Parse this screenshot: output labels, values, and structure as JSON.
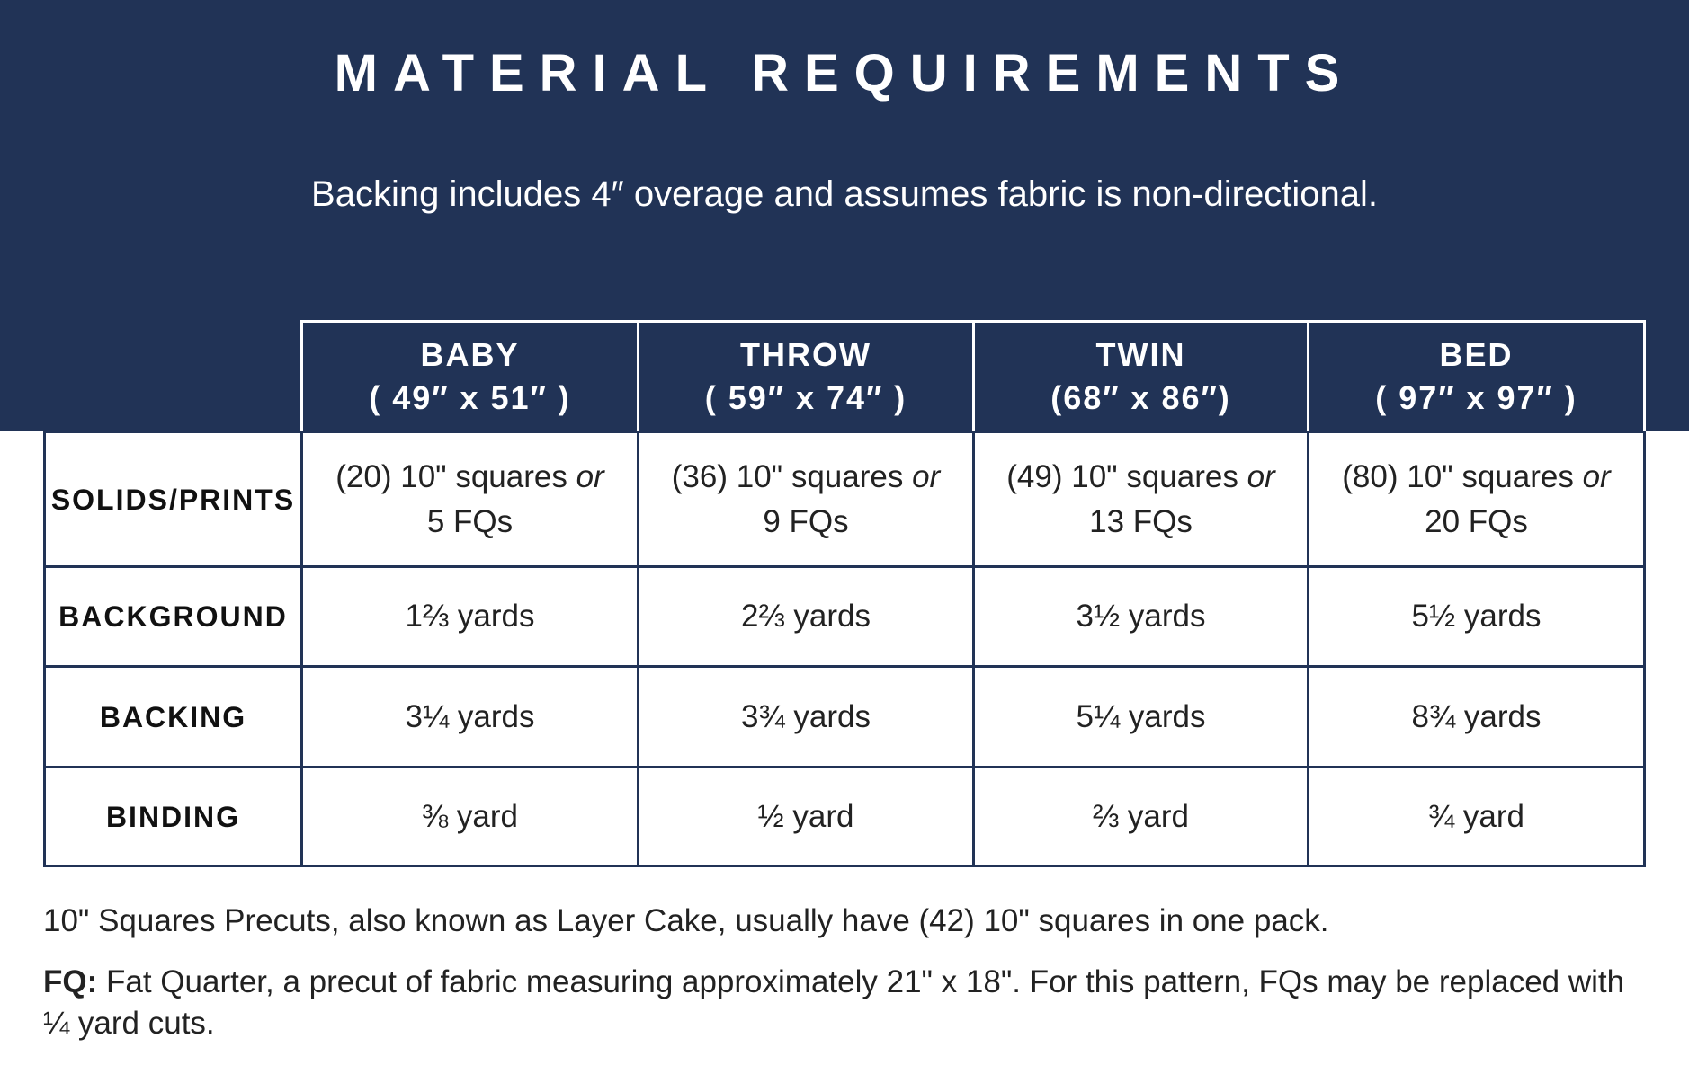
{
  "header": {
    "title": "MATERIAL REQUIREMENTS",
    "subtitle": "Backing includes 4″ overage and assumes fabric is non-directional."
  },
  "table": {
    "columns": [
      {
        "name": "BABY",
        "size": "( 49″ x 51″ )"
      },
      {
        "name": "THROW",
        "size": "( 59″ x 74″ )"
      },
      {
        "name": "TWIN",
        "size": "(68″ x 86″)"
      },
      {
        "name": "BED",
        "size": "( 97″ x 97″ )"
      }
    ],
    "rows": [
      {
        "label": "SOLIDS/PRINTS",
        "cells": [
          {
            "line1": "(20) 10\" squares",
            "conjunction": "or",
            "line2": "5 FQs"
          },
          {
            "line1": "(36) 10\" squares",
            "conjunction": "or",
            "line2": "9 FQs"
          },
          {
            "line1": "(49) 10\" squares",
            "conjunction": "or",
            "line2": "13 FQs"
          },
          {
            "line1": "(80) 10\" squares",
            "conjunction": "or",
            "line2": "20 FQs"
          }
        ]
      },
      {
        "label": "BACKGROUND",
        "cells": [
          "1⅔ yards",
          "2⅔ yards",
          "3½ yards",
          "5½ yards"
        ]
      },
      {
        "label": "BACKING",
        "cells": [
          "3¼ yards",
          "3¾ yards",
          "5¼ yards",
          "8¾ yards"
        ]
      },
      {
        "label": "BINDING",
        "cells": [
          "⅜ yard",
          "½ yard",
          "⅔ yard",
          "¾ yard"
        ]
      }
    ]
  },
  "notes": [
    {
      "text": "10\" Squares Precuts, also known as Layer Cake, usually have (42) 10\" squares in one pack."
    },
    {
      "term": "FQ:",
      "text": " Fat Quarter, a precut of fabric measuring approximately 21\" x 18\". For this pattern, FQs may be replaced with ¼ yard cuts."
    }
  ]
}
